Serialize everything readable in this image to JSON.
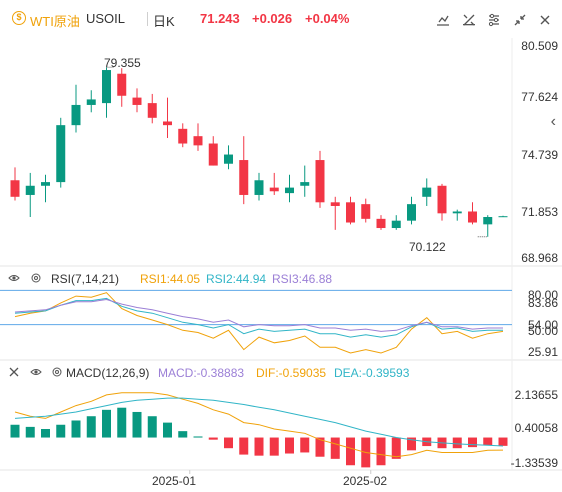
{
  "header": {
    "symbol_name": "WTI原油",
    "symbol_code": "USOIL",
    "period": "日K",
    "last": "71.243",
    "change": "+0.026",
    "change_pct": "+0.04%"
  },
  "toolbar": [
    "draw-icon",
    "indicator-icon",
    "settings-icon",
    "collapse-icon",
    "close-icon"
  ],
  "colors": {
    "up": "#089981",
    "down": "#f23645",
    "accent": "#f0a20a"
  },
  "price_axis": [
    "80.509",
    "77.624",
    "74.739",
    "71.853",
    "68.968"
  ],
  "annotations": {
    "high": "79.355",
    "low": "70.122"
  },
  "rsi": {
    "title": "RSI(7,14,21)",
    "rsi1": "RSI1:44.05",
    "rsi2": "RSI2:44.94",
    "rsi3": "RSI3:46.88",
    "axis": [
      "80.00",
      "83.86",
      "54.00",
      "50.00",
      "25.91"
    ]
  },
  "macd": {
    "title": "MACD(12,26,9)",
    "macd": "MACD:-0.38883",
    "dif": "DIF:-0.59035",
    "dea": "DEA:-0.39593",
    "axis": [
      "2.13655",
      "0.40058",
      "-1.33539"
    ]
  },
  "time_axis": [
    "2025-01",
    "2025-02"
  ],
  "chart_data": {
    "type": "candlestick",
    "candles": [
      [
        73.2,
        73.9,
        72.1,
        72.3
      ],
      [
        72.4,
        73.6,
        71.2,
        72.9
      ],
      [
        72.9,
        73.5,
        72.0,
        73.1
      ],
      [
        73.1,
        76.6,
        72.8,
        76.2
      ],
      [
        76.2,
        78.4,
        75.8,
        77.3
      ],
      [
        77.3,
        78.1,
        76.9,
        77.6
      ],
      [
        77.4,
        79.355,
        76.6,
        79.2
      ],
      [
        79.0,
        79.3,
        77.2,
        77.8
      ],
      [
        77.7,
        78.2,
        76.9,
        77.3
      ],
      [
        77.4,
        77.9,
        76.3,
        76.6
      ],
      [
        76.4,
        77.7,
        75.5,
        76.2
      ],
      [
        76.0,
        76.3,
        75.0,
        75.2
      ],
      [
        75.6,
        76.3,
        74.8,
        75.1
      ],
      [
        75.2,
        75.6,
        74.0,
        74.0
      ],
      [
        74.1,
        75.1,
        73.8,
        74.6
      ],
      [
        74.3,
        75.6,
        71.9,
        72.4
      ],
      [
        72.4,
        73.6,
        72.1,
        73.2
      ],
      [
        72.8,
        73.6,
        72.4,
        72.6
      ],
      [
        72.5,
        73.5,
        72.0,
        72.8
      ],
      [
        72.9,
        74.0,
        72.3,
        73.1
      ],
      [
        74.3,
        74.8,
        71.7,
        72.0
      ],
      [
        72.0,
        72.3,
        70.5,
        71.8
      ],
      [
        72.0,
        72.3,
        70.8,
        70.9
      ],
      [
        71.9,
        72.2,
        70.9,
        71.1
      ],
      [
        71.1,
        71.3,
        70.5,
        70.6
      ],
      [
        70.6,
        71.3,
        70.5,
        71.0
      ],
      [
        71.0,
        72.3,
        70.8,
        71.9
      ],
      [
        72.3,
        73.3,
        71.8,
        72.8
      ],
      [
        72.9,
        73.0,
        71.0,
        71.4
      ],
      [
        71.4,
        71.6,
        71.0,
        71.5
      ],
      [
        71.5,
        72.0,
        70.8,
        70.9
      ],
      [
        70.8,
        71.3,
        70.122,
        71.2
      ],
      [
        71.243,
        71.27,
        71.22,
        71.243
      ]
    ],
    "rsi1": [
      57,
      60,
      62,
      69,
      75,
      74,
      78,
      64,
      58,
      54,
      50,
      45,
      43,
      38,
      45,
      28,
      39,
      34,
      36,
      40,
      30,
      30,
      25,
      28,
      25,
      30,
      46,
      56,
      42,
      44,
      38,
      42,
      44
    ],
    "rsi2": [
      60,
      61,
      62,
      67,
      71,
      71,
      73,
      66,
      62,
      60,
      56,
      52,
      50,
      47,
      50,
      42,
      46,
      44,
      45,
      46,
      42,
      42,
      39,
      41,
      39,
      41,
      48,
      52,
      46,
      47,
      44,
      45,
      45
    ],
    "rsi3": [
      61,
      62,
      63,
      67,
      70,
      70,
      72,
      68,
      65,
      63,
      60,
      57,
      55,
      52,
      54,
      48,
      50,
      49,
      49,
      50,
      47,
      47,
      45,
      46,
      44,
      45,
      49,
      52,
      48,
      48,
      46,
      47,
      47
    ],
    "macd_hist": [
      0.6,
      0.5,
      0.4,
      0.6,
      0.8,
      1.0,
      1.3,
      1.4,
      1.2,
      1.0,
      0.7,
      0.3,
      0.05,
      -0.1,
      -0.5,
      -0.8,
      -0.85,
      -0.85,
      -0.75,
      -0.7,
      -0.9,
      -1.0,
      -1.3,
      -1.4,
      -1.3,
      -1.0,
      -0.6,
      -0.4,
      -0.5,
      -0.5,
      -0.45,
      -0.35,
      -0.39
    ],
    "dif": [
      1.2,
      1.0,
      0.9,
      1.2,
      1.5,
      1.7,
      2.0,
      2.1,
      2.1,
      2.1,
      2.0,
      1.8,
      1.6,
      1.3,
      1.1,
      0.7,
      0.6,
      0.4,
      0.3,
      0.2,
      -0.1,
      -0.3,
      -0.5,
      -0.7,
      -0.8,
      -0.9,
      -0.8,
      -0.6,
      -0.7,
      -0.7,
      -0.7,
      -0.6,
      -0.59
    ],
    "dea": [
      0.9,
      0.95,
      1.0,
      1.1,
      1.2,
      1.35,
      1.5,
      1.65,
      1.75,
      1.8,
      1.85,
      1.85,
      1.8,
      1.75,
      1.65,
      1.55,
      1.42,
      1.3,
      1.15,
      1.0,
      0.85,
      0.7,
      0.5,
      0.3,
      0.15,
      0.0,
      -0.1,
      -0.2,
      -0.25,
      -0.3,
      -0.33,
      -0.36,
      -0.396
    ],
    "price_range": [
      68.968,
      80.509
    ],
    "rsi_range": [
      25.91,
      83.86
    ],
    "macd_range": [
      -1.33539,
      2.13655
    ]
  }
}
